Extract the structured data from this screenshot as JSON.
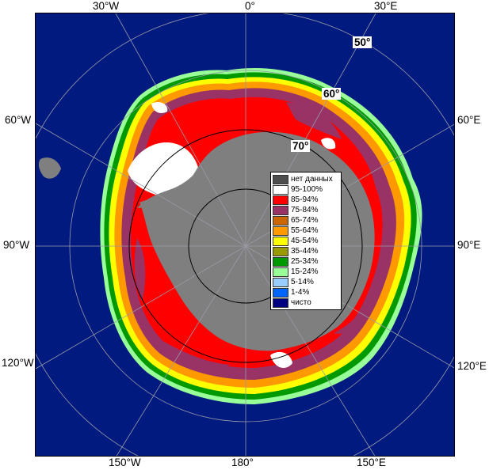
{
  "map": {
    "projection": "south-polar-stereographic",
    "longitude_labels": {
      "top": [
        "30°W",
        "0°",
        "30°E"
      ],
      "left": [
        "60°W",
        "90°W",
        "120°W"
      ],
      "right": [
        "60°E",
        "90°E",
        "120°E"
      ],
      "bottom": [
        "150°W",
        "180°",
        "150°E"
      ]
    },
    "latitude_labels": [
      "50°",
      "60°",
      "70°"
    ],
    "colors": {
      "ocean_open": "#001a80",
      "land": "#7f7f7f",
      "grid": "#9a9aa8",
      "lat_circle": "#000000"
    }
  },
  "legend": {
    "items": [
      {
        "label": "нет данных",
        "color": "#4d4d4d"
      },
      {
        "label": "95-100%",
        "color": "#ffffff"
      },
      {
        "label": "85-94%",
        "color": "#ff0000"
      },
      {
        "label": "75-84%",
        "color": "#993366"
      },
      {
        "label": "65-74%",
        "color": "#cc6600"
      },
      {
        "label": "55-64%",
        "color": "#ff9900"
      },
      {
        "label": "45-54%",
        "color": "#ffff00"
      },
      {
        "label": "35-44%",
        "color": "#999900"
      },
      {
        "label": "25-34%",
        "color": "#009900"
      },
      {
        "label": "15-24%",
        "color": "#99ff99"
      },
      {
        "label": "5-14%",
        "color": "#99ccff"
      },
      {
        "label": "1-4%",
        "color": "#0066ff"
      },
      {
        "label": "чисто",
        "color": "#000080"
      }
    ]
  }
}
